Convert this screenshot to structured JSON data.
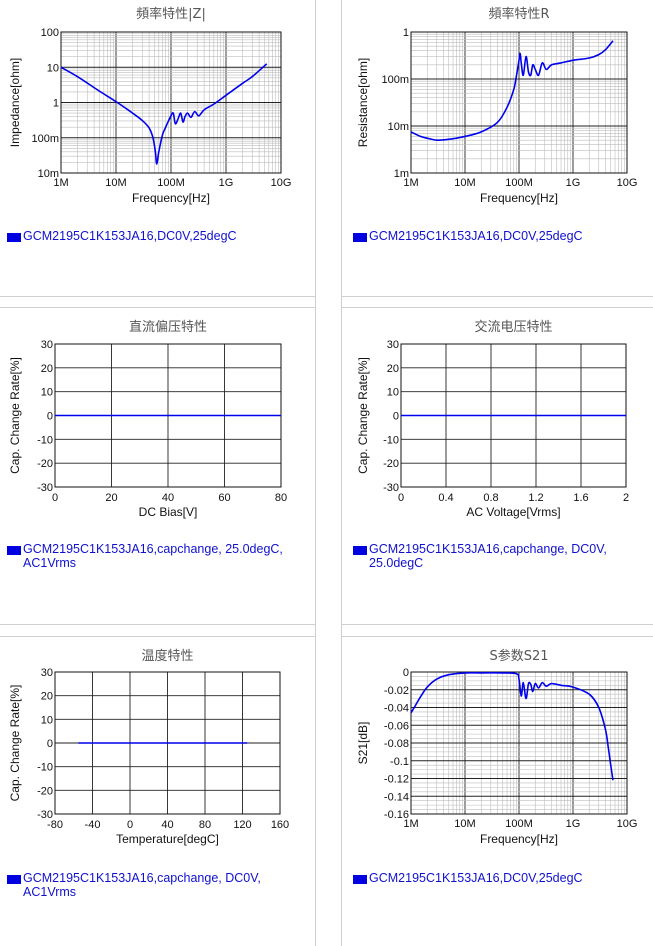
{
  "legend_color": "#0000e0",
  "line_color": "#0000ee",
  "chart_data": [
    {
      "id": "z",
      "type": "line",
      "title": "頻率特性|Z|",
      "xlabel": "Frequency[Hz]",
      "ylabel": "Impedance[ohm]",
      "xscale": "log",
      "yscale": "log",
      "xlim": [
        1000000,
        10000000000
      ],
      "ylim": [
        0.01,
        100
      ],
      "xtick_labels": [
        "1M",
        "10M",
        "100M",
        "1G",
        "10G"
      ],
      "ytick_labels": [
        "10m",
        "100m",
        "1",
        "10",
        "100"
      ],
      "grid": true,
      "legend": "GCM2195C1K153JA16,DC0V,25degC",
      "series": [
        {
          "x": [
            1000000,
            2000000,
            5000000,
            10000000,
            20000000,
            30000000,
            40000000,
            47000000,
            52000000,
            55000000,
            60000000,
            70000000,
            80000000,
            90000000,
            100000000,
            110000000,
            120000000,
            135000000,
            150000000,
            165000000,
            180000000,
            200000000,
            230000000,
            270000000,
            320000000,
            400000000,
            600000000,
            1000000000,
            2000000000,
            3000000000,
            5500000000
          ],
          "y": [
            10,
            5.4,
            2.1,
            1.06,
            0.5,
            0.31,
            0.19,
            0.1,
            0.04,
            0.018,
            0.04,
            0.12,
            0.2,
            0.3,
            0.42,
            0.5,
            0.25,
            0.35,
            0.5,
            0.28,
            0.4,
            0.5,
            0.38,
            0.55,
            0.42,
            0.62,
            0.9,
            1.6,
            3.5,
            5.4,
            12.5
          ]
        }
      ]
    },
    {
      "id": "r",
      "type": "line",
      "title": "頻率特性R",
      "xlabel": "Frequency[Hz]",
      "ylabel": "Resistance[ohm]",
      "xscale": "log",
      "yscale": "log",
      "xlim": [
        1000000,
        10000000000
      ],
      "ylim": [
        0.001,
        1
      ],
      "xtick_labels": [
        "1M",
        "10M",
        "100M",
        "1G",
        "10G"
      ],
      "ytick_labels": [
        "1m",
        "10m",
        "100m",
        "1"
      ],
      "grid": true,
      "legend": "GCM2195C1K153JA16,DC0V,25degC",
      "series": [
        {
          "x": [
            1000000,
            1500000,
            2000000,
            3000000,
            5000000,
            10000000,
            20000000,
            40000000,
            60000000,
            80000000,
            90000000,
            100000000,
            105000000,
            110000000,
            120000000,
            135000000,
            150000000,
            165000000,
            180000000,
            200000000,
            230000000,
            270000000,
            320000000,
            400000000,
            600000000,
            1000000000,
            2000000000,
            3000000000,
            4000000000,
            5500000000
          ],
          "y": [
            0.0075,
            0.006,
            0.0055,
            0.005,
            0.0052,
            0.006,
            0.0075,
            0.012,
            0.025,
            0.06,
            0.12,
            0.25,
            0.35,
            0.22,
            0.12,
            0.3,
            0.14,
            0.12,
            0.2,
            0.16,
            0.12,
            0.22,
            0.16,
            0.2,
            0.22,
            0.25,
            0.28,
            0.33,
            0.42,
            0.65
          ]
        }
      ]
    },
    {
      "id": "dc",
      "type": "line",
      "title": "直流偏压特性",
      "xlabel": "DC Bias[V]",
      "ylabel": "Cap. Change Rate[%]",
      "xscale": "linear",
      "yscale": "linear",
      "xlim": [
        0,
        80
      ],
      "ylim": [
        -30,
        30
      ],
      "xticks": [
        0,
        20,
        40,
        60,
        80
      ],
      "yticks": [
        -30,
        -20,
        -10,
        0,
        10,
        20,
        30
      ],
      "grid": true,
      "legend": "GCM2195C1K153JA16,capchange, 25.0degC, AC1Vrms",
      "series": [
        {
          "x": [
            0,
            80
          ],
          "y": [
            0,
            0
          ]
        }
      ]
    },
    {
      "id": "ac",
      "type": "line",
      "title": "交流电压特性",
      "xlabel": "AC Voltage[Vrms]",
      "ylabel": "Cap. Change Rate[%]",
      "xscale": "linear",
      "yscale": "linear",
      "xlim": [
        0,
        2
      ],
      "ylim": [
        -30,
        30
      ],
      "xticks": [
        0,
        0.4,
        0.8,
        1.2,
        1.6,
        2
      ],
      "yticks": [
        -30,
        -20,
        -10,
        0,
        10,
        20,
        30
      ],
      "grid": true,
      "legend": "GCM2195C1K153JA16,capchange, DC0V, 25.0degC",
      "series": [
        {
          "x": [
            0,
            2
          ],
          "y": [
            0,
            0
          ]
        }
      ]
    },
    {
      "id": "temp",
      "type": "line",
      "title": "温度特性",
      "xlabel": "Temperature[degC]",
      "ylabel": "Cap. Change Rate[%]",
      "xscale": "linear",
      "yscale": "linear",
      "xlim": [
        -80,
        160
      ],
      "ylim": [
        -30,
        30
      ],
      "xticks": [
        -80,
        -40,
        0,
        40,
        80,
        120,
        160
      ],
      "yticks": [
        -30,
        -20,
        -10,
        0,
        10,
        20,
        30
      ],
      "grid": true,
      "legend": "GCM2195C1K153JA16,capchange, DC0V, AC1Vrms",
      "series": [
        {
          "x": [
            -55,
            125
          ],
          "y": [
            0,
            0
          ]
        }
      ]
    },
    {
      "id": "s21",
      "type": "line",
      "title": "S参数S21",
      "xlabel": "Frequency[Hz]",
      "ylabel": "S21[dB]",
      "xscale": "log",
      "yscale": "linear",
      "xlim": [
        1000000,
        10000000000
      ],
      "ylim": [
        -0.16,
        0
      ],
      "xtick_labels": [
        "1M",
        "10M",
        "100M",
        "1G",
        "10G"
      ],
      "yticks": [
        -0.16,
        -0.14,
        -0.12,
        -0.1,
        -0.08,
        -0.06,
        -0.04,
        -0.02,
        0
      ],
      "grid": true,
      "legend": "GCM2195C1K153JA16,DC0V,25degC",
      "series": [
        {
          "x": [
            1000000,
            1200000,
            1500000,
            2000000,
            3000000,
            5000000,
            10000000,
            20000000,
            50000000,
            90000000,
            100000000,
            110000000,
            120000000,
            135000000,
            150000000,
            165000000,
            180000000,
            200000000,
            230000000,
            270000000,
            320000000,
            400000000,
            600000000,
            1000000000,
            2000000000,
            3000000000,
            4000000000,
            4500000000,
            5000000000,
            5500000000
          ],
          "y": [
            -0.046,
            -0.038,
            -0.028,
            -0.017,
            -0.008,
            -0.003,
            -0.001,
            -0.001,
            -0.001,
            -0.002,
            -0.008,
            -0.027,
            -0.012,
            -0.03,
            -0.013,
            -0.014,
            -0.022,
            -0.013,
            -0.018,
            -0.012,
            -0.016,
            -0.013,
            -0.015,
            -0.017,
            -0.025,
            -0.04,
            -0.065,
            -0.085,
            -0.105,
            -0.122
          ]
        }
      ]
    }
  ]
}
